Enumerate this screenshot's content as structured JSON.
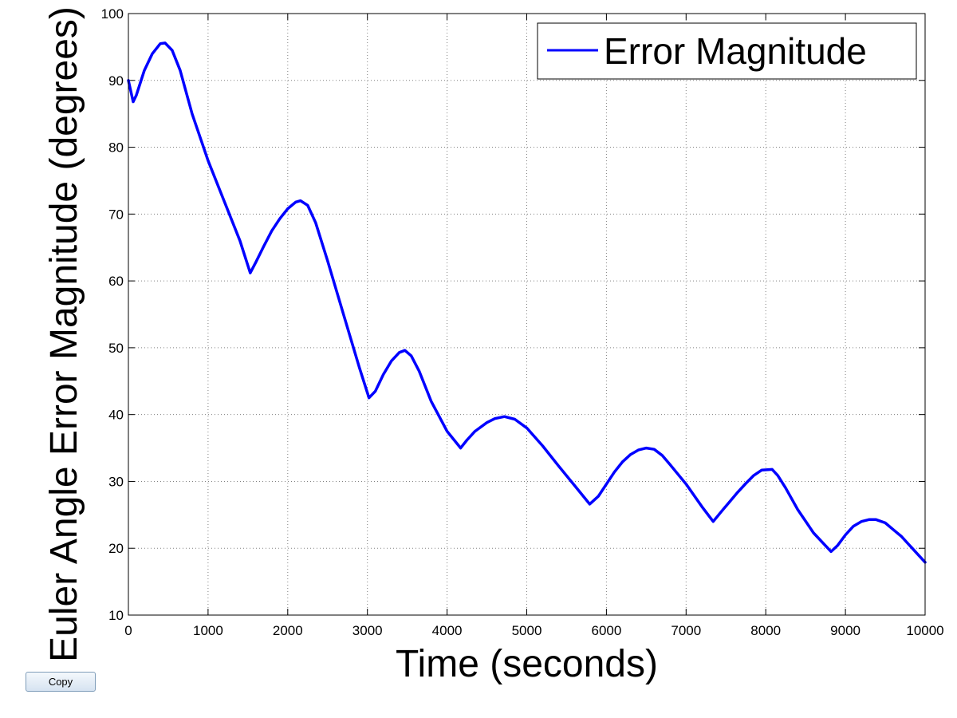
{
  "chart_data": {
    "type": "line",
    "title": "",
    "xlabel": "Time (seconds)",
    "ylabel": "Euler Angle Error Magnitude (degrees)",
    "xlim": [
      0,
      10000
    ],
    "ylim": [
      10,
      100
    ],
    "xticks": [
      0,
      1000,
      2000,
      3000,
      4000,
      5000,
      6000,
      7000,
      8000,
      9000,
      10000
    ],
    "yticks": [
      10,
      20,
      30,
      40,
      50,
      60,
      70,
      80,
      90,
      100
    ],
    "grid": true,
    "grid_style": "dotted",
    "legend_position": "top-right",
    "series": [
      {
        "name": "Error Magnitude",
        "color": "#0000ff",
        "x": [
          0,
          60,
          100,
          200,
          300,
          400,
          460,
          550,
          650,
          800,
          1000,
          1200,
          1400,
          1530,
          1600,
          1700,
          1800,
          1900,
          2000,
          2100,
          2160,
          2250,
          2350,
          2500,
          2700,
          2900,
          3020,
          3100,
          3200,
          3300,
          3400,
          3470,
          3550,
          3650,
          3800,
          4000,
          4170,
          4250,
          4350,
          4500,
          4600,
          4720,
          4850,
          5000,
          5200,
          5400,
          5600,
          5790,
          5900,
          6000,
          6100,
          6200,
          6300,
          6400,
          6500,
          6600,
          6700,
          6800,
          7000,
          7200,
          7340,
          7450,
          7550,
          7650,
          7750,
          7850,
          7950,
          8080,
          8150,
          8250,
          8400,
          8600,
          8820,
          8900,
          9000,
          9100,
          9200,
          9300,
          9380,
          9500,
          9600,
          9700,
          9800,
          9900,
          10000
        ],
        "y": [
          90.0,
          86.8,
          87.8,
          91.5,
          94.0,
          95.5,
          95.6,
          94.5,
          91.5,
          85.0,
          78.0,
          72.0,
          66.0,
          61.2,
          62.8,
          65.2,
          67.5,
          69.3,
          70.8,
          71.8,
          72.0,
          71.3,
          68.7,
          63.0,
          55.0,
          47.0,
          42.5,
          43.5,
          46.0,
          48.0,
          49.3,
          49.6,
          48.8,
          46.5,
          42.0,
          37.5,
          35.0,
          36.2,
          37.5,
          38.8,
          39.4,
          39.7,
          39.3,
          38.0,
          35.3,
          32.3,
          29.4,
          26.6,
          27.8,
          29.6,
          31.4,
          32.9,
          34.0,
          34.7,
          35.0,
          34.8,
          33.9,
          32.5,
          29.6,
          26.2,
          24.0,
          25.6,
          27.0,
          28.4,
          29.7,
          30.9,
          31.7,
          31.8,
          30.9,
          29.0,
          25.8,
          22.3,
          19.5,
          20.4,
          22.0,
          23.3,
          24.0,
          24.3,
          24.3,
          23.8,
          22.8,
          21.8,
          20.5,
          19.2,
          17.9
        ]
      }
    ]
  },
  "toolbar": {
    "copy_label": "Copy"
  }
}
